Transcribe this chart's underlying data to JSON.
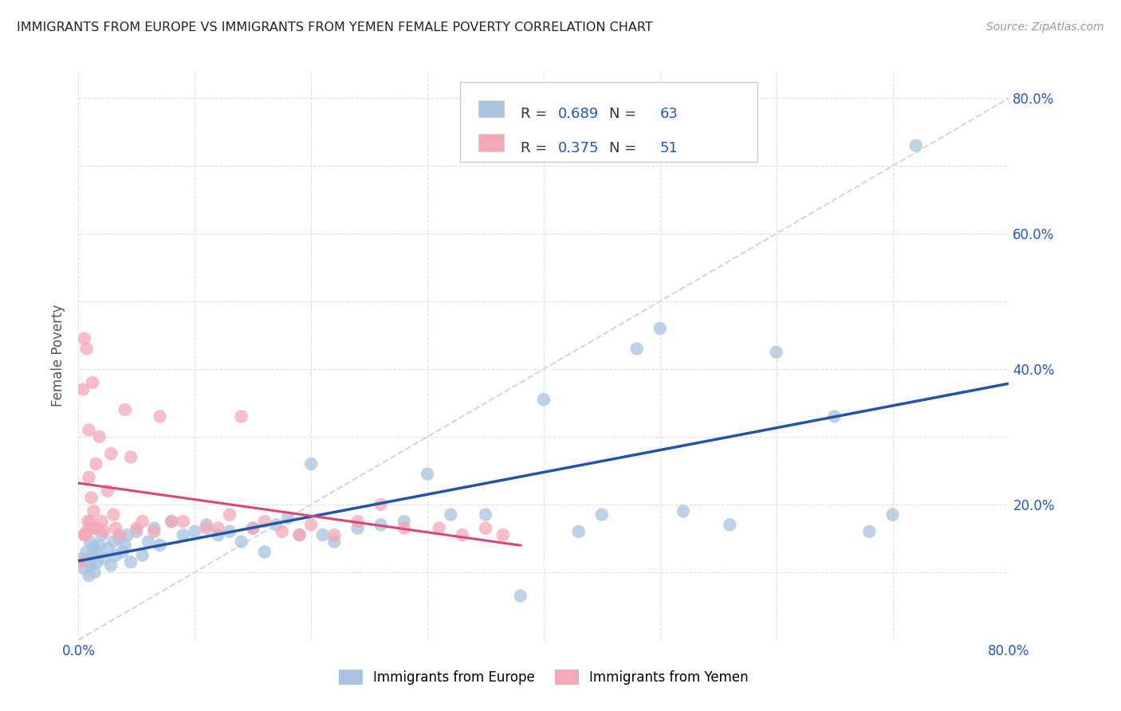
{
  "title": "IMMIGRANTS FROM EUROPE VS IMMIGRANTS FROM YEMEN FEMALE POVERTY CORRELATION CHART",
  "source": "Source: ZipAtlas.com",
  "ylabel": "Female Poverty",
  "xlim": [
    0.0,
    0.8
  ],
  "ylim": [
    0.0,
    0.84
  ],
  "x_ticks": [
    0.0,
    0.1,
    0.2,
    0.3,
    0.4,
    0.5,
    0.6,
    0.7,
    0.8
  ],
  "x_tick_labels": [
    "0.0%",
    "",
    "",
    "",
    "",
    "",
    "",
    "",
    "80.0%"
  ],
  "y_ticks_left": [
    0.0,
    0.1,
    0.2,
    0.3,
    0.4,
    0.5,
    0.6,
    0.7,
    0.8
  ],
  "y_tick_labels_left": [
    "",
    "",
    "",
    "",
    "",
    "",
    "",
    "",
    ""
  ],
  "y_ticks_right": [
    0.2,
    0.4,
    0.6,
    0.8
  ],
  "y_tick_labels_right": [
    "20.0%",
    "40.0%",
    "60.0%",
    "80.0%"
  ],
  "legend_europe_label": "Immigrants from Europe",
  "legend_yemen_label": "Immigrants from Yemen",
  "europe_R": "0.689",
  "europe_N": "63",
  "yemen_R": "0.375",
  "yemen_N": "51",
  "europe_color": "#a8c4e0",
  "yemen_color": "#f4a8b8",
  "europe_line_color": "#2255aa",
  "yemen_line_color": "#dd4477",
  "dashed_line_color": "#cccccc",
  "title_color": "#222222",
  "source_color": "#999999",
  "axis_label_color": "#555555",
  "tick_color": "#2255cc",
  "grid_color": "#e0e0e0",
  "background_color": "#ffffff",
  "europe_x": [
    0.003,
    0.005,
    0.007,
    0.008,
    0.009,
    0.01,
    0.011,
    0.012,
    0.013,
    0.014,
    0.015,
    0.016,
    0.018,
    0.02,
    0.022,
    0.025,
    0.028,
    0.03,
    0.032,
    0.035,
    0.038,
    0.04,
    0.042,
    0.045,
    0.05,
    0.055,
    0.06,
    0.065,
    0.07,
    0.08,
    0.09,
    0.1,
    0.11,
    0.12,
    0.13,
    0.14,
    0.15,
    0.16,
    0.17,
    0.18,
    0.19,
    0.2,
    0.21,
    0.22,
    0.24,
    0.26,
    0.28,
    0.3,
    0.32,
    0.35,
    0.38,
    0.4,
    0.43,
    0.45,
    0.48,
    0.5,
    0.52,
    0.56,
    0.6,
    0.65,
    0.68,
    0.7,
    0.72
  ],
  "europe_y": [
    0.12,
    0.105,
    0.13,
    0.115,
    0.095,
    0.145,
    0.11,
    0.125,
    0.138,
    0.1,
    0.13,
    0.115,
    0.14,
    0.155,
    0.12,
    0.135,
    0.11,
    0.145,
    0.125,
    0.15,
    0.13,
    0.14,
    0.155,
    0.115,
    0.16,
    0.125,
    0.145,
    0.165,
    0.14,
    0.175,
    0.155,
    0.16,
    0.17,
    0.155,
    0.16,
    0.145,
    0.165,
    0.13,
    0.17,
    0.18,
    0.155,
    0.26,
    0.155,
    0.145,
    0.165,
    0.17,
    0.175,
    0.245,
    0.185,
    0.185,
    0.065,
    0.355,
    0.16,
    0.185,
    0.43,
    0.46,
    0.19,
    0.17,
    0.425,
    0.33,
    0.16,
    0.185,
    0.73
  ],
  "yemen_x": [
    0.002,
    0.004,
    0.005,
    0.006,
    0.007,
    0.008,
    0.009,
    0.01,
    0.011,
    0.012,
    0.013,
    0.014,
    0.015,
    0.016,
    0.018,
    0.02,
    0.022,
    0.025,
    0.028,
    0.03,
    0.032,
    0.035,
    0.04,
    0.045,
    0.05,
    0.055,
    0.065,
    0.07,
    0.08,
    0.09,
    0.11,
    0.12,
    0.13,
    0.14,
    0.15,
    0.16,
    0.175,
    0.19,
    0.2,
    0.22,
    0.24,
    0.26,
    0.28,
    0.31,
    0.33,
    0.35,
    0.365,
    0.005,
    0.007,
    0.009,
    0.012
  ],
  "yemen_y": [
    0.115,
    0.37,
    0.155,
    0.155,
    0.16,
    0.175,
    0.24,
    0.175,
    0.21,
    0.165,
    0.19,
    0.165,
    0.26,
    0.165,
    0.3,
    0.175,
    0.16,
    0.22,
    0.275,
    0.185,
    0.165,
    0.155,
    0.34,
    0.27,
    0.165,
    0.175,
    0.16,
    0.33,
    0.175,
    0.175,
    0.165,
    0.165,
    0.185,
    0.33,
    0.165,
    0.175,
    0.16,
    0.155,
    0.17,
    0.155,
    0.175,
    0.2,
    0.165,
    0.165,
    0.155,
    0.165,
    0.155,
    0.445,
    0.43,
    0.31,
    0.38
  ]
}
